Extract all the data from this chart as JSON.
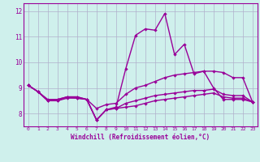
{
  "xlabel": "Windchill (Refroidissement éolien,°C)",
  "x": [
    0,
    1,
    2,
    3,
    4,
    5,
    6,
    7,
    8,
    9,
    10,
    11,
    12,
    13,
    14,
    15,
    16,
    17,
    18,
    19,
    20,
    21,
    22,
    23
  ],
  "line1": [
    9.1,
    8.85,
    8.5,
    8.5,
    8.65,
    8.65,
    8.55,
    7.75,
    8.15,
    8.2,
    8.25,
    8.3,
    8.4,
    8.5,
    8.55,
    8.6,
    8.65,
    8.7,
    8.75,
    8.8,
    8.65,
    8.6,
    8.6,
    8.45
  ],
  "line2": [
    9.1,
    8.85,
    8.5,
    8.55,
    8.65,
    8.65,
    8.55,
    7.75,
    8.15,
    8.25,
    9.75,
    11.05,
    11.3,
    11.25,
    11.9,
    10.3,
    10.7,
    9.55,
    9.65,
    9.0,
    8.55,
    8.55,
    8.55,
    8.45
  ],
  "line3": [
    9.1,
    8.85,
    8.55,
    8.55,
    8.65,
    8.6,
    8.55,
    8.2,
    8.35,
    8.4,
    8.75,
    9.0,
    9.1,
    9.25,
    9.4,
    9.5,
    9.55,
    9.6,
    9.65,
    9.65,
    9.6,
    9.4,
    9.4,
    8.45
  ],
  "line4": [
    9.1,
    8.85,
    8.5,
    8.5,
    8.6,
    8.6,
    8.55,
    7.75,
    8.15,
    8.2,
    8.4,
    8.5,
    8.6,
    8.7,
    8.75,
    8.8,
    8.85,
    8.9,
    8.9,
    8.95,
    8.75,
    8.7,
    8.7,
    8.45
  ],
  "bg_color": "#cff0ec",
  "line_color": "#990099",
  "grid_color": "#b0b0cc",
  "ylim": [
    7.5,
    12.3
  ],
  "yticks": [
    8,
    9,
    10,
    11,
    12
  ],
  "marker": "D",
  "markersize": 2.2,
  "linewidth": 1.0
}
